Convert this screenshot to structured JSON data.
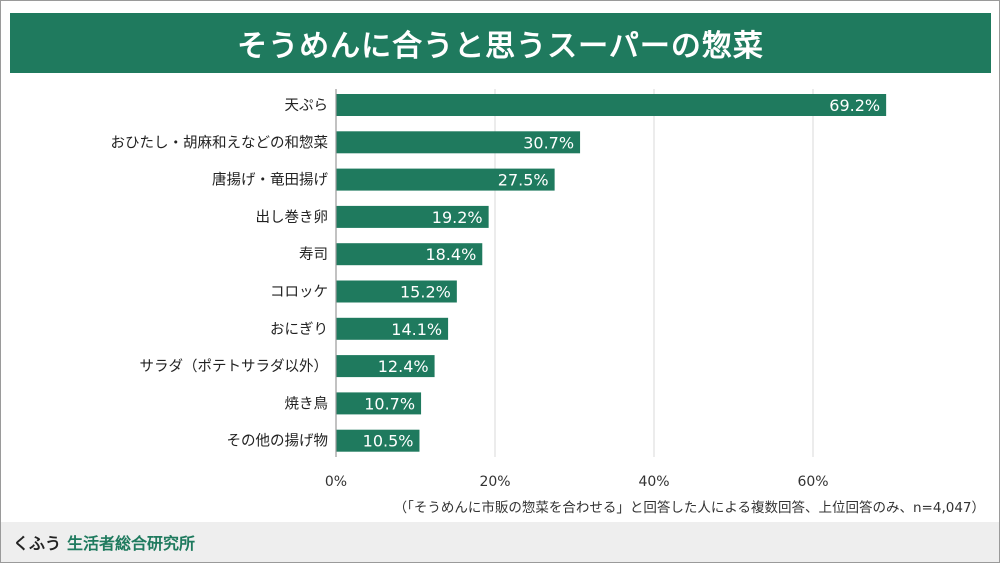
{
  "brand": {
    "name_part1": "くふう",
    "name_part2": "生活者総合研究所"
  },
  "colors": {
    "bar": "#1f7a5e",
    "grid": "#d9d9d9",
    "axis": "#9a9a9a",
    "label_text": "#222222",
    "value_text": "#ffffff"
  },
  "chart_data": {
    "type": "bar",
    "orientation": "horizontal",
    "title": "そうめんに合うと思うスーパーの惣菜",
    "note": "（「そうめんに市販の惣菜を合わせる」と回答した人による複数回答、上位回答のみ、n=4,047）",
    "categories": [
      "天ぷら",
      "おひたし・胡麻和えなどの和惣菜",
      "唐揚げ・竜田揚げ",
      "出し巻き卵",
      "寿司",
      "コロッケ",
      "おにぎり",
      "サラダ（ポテトサラダ以外）",
      "焼き鳥",
      "その他の揚げ物"
    ],
    "values": [
      69.2,
      30.7,
      27.5,
      19.2,
      18.4,
      15.2,
      14.1,
      12.4,
      10.7,
      10.5
    ],
    "value_labels": [
      "69.2%",
      "30.7%",
      "27.5%",
      "19.2%",
      "18.4%",
      "15.2%",
      "14.1%",
      "12.4%",
      "10.7%",
      "10.5%"
    ],
    "xticks": [
      0,
      20,
      40,
      60
    ],
    "xtick_labels": [
      "0%",
      "20%",
      "40%",
      "60%"
    ],
    "xlim": [
      0,
      80
    ],
    "grid": true
  }
}
